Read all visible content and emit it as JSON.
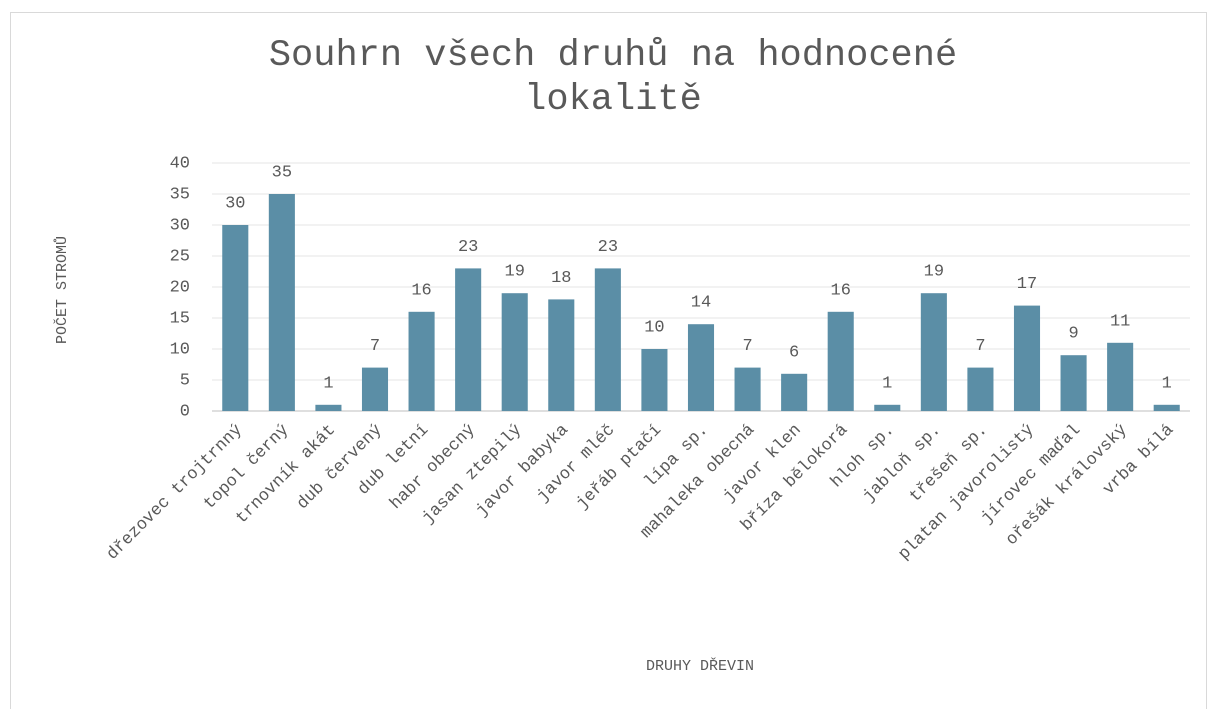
{
  "chart_data": {
    "type": "bar",
    "title": "Souhrn všech druhů na hodnocené lokalitě",
    "x_label": "DRUHY DŘEVIN",
    "y_label": "POČET STROMŮ",
    "categories": [
      "dřezovec trojtrnný",
      "topol černý",
      "trnovník akát",
      "dub červený",
      "dub letní",
      "habr obecný",
      "jasan ztepilý",
      "javor babyka",
      "javor mléč",
      "jeřáb ptačí",
      "lípa sp.",
      "mahaleka obecná",
      "javor klen",
      "bříza bělokorá",
      "hloh sp.",
      "jabloň sp.",
      "třešeň sp.",
      "platan javorolistý",
      "jírovec maďal",
      "ořešák královský",
      "vrba bílá"
    ],
    "values": [
      30,
      35,
      1,
      7,
      16,
      23,
      19,
      18,
      23,
      10,
      14,
      7,
      6,
      16,
      1,
      19,
      7,
      17,
      9,
      11,
      1
    ],
    "color": "#5b8ea6",
    "ylim": [
      0,
      40
    ],
    "yticks": [
      0,
      5,
      10,
      15,
      20,
      25,
      30,
      35,
      40
    ],
    "grid": true
  }
}
